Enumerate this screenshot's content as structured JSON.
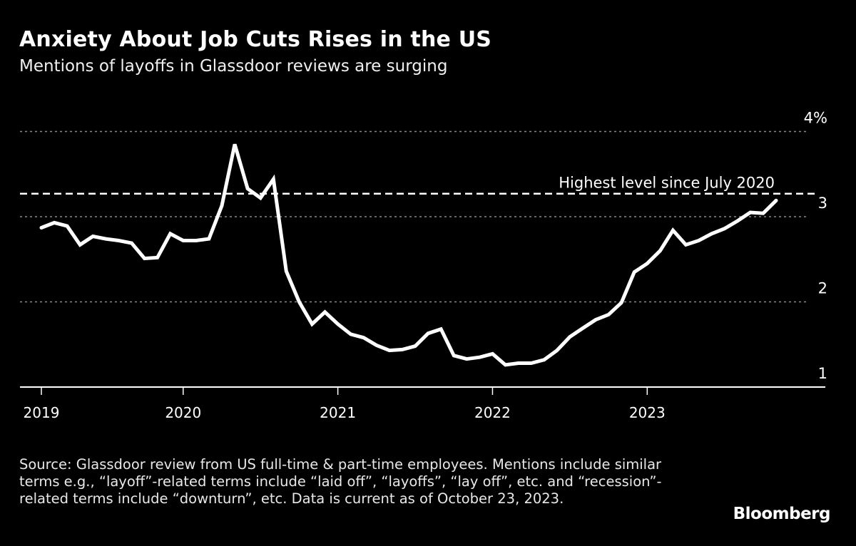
{
  "title": "Anxiety About Job Cuts Rises in the US",
  "subtitle": "Mentions of layoffs in Glassdoor reviews are surging",
  "source": "Source: Glassdoor review from US full-time & part-time employees. Mentions include similar terms e.g., “layoff”-related terms include “laid off”, “layoffs”, “lay off”, etc. and “recession”-related terms include “downturn”, etc. Data is current as of October 23, 2023.",
  "logo": "Bloomberg",
  "colors": {
    "background": "#000000",
    "line": "#ffffff",
    "grid": "#8a8a8a"
  },
  "chart_data": {
    "type": "line",
    "title": "Anxiety About Job Cuts Rises in the US",
    "xlabel": "",
    "ylabel": "",
    "x_unit": "month index from Jan 2019",
    "x_start": "2019-01",
    "ylim": [
      1,
      4
    ],
    "yticks": [
      {
        "value": 4,
        "label": "4%"
      },
      {
        "value": 3,
        "label": "3"
      },
      {
        "value": 2,
        "label": "2"
      },
      {
        "value": 1,
        "label": "1"
      }
    ],
    "xticks": [
      {
        "value": 0,
        "label": "2019"
      },
      {
        "value": 11,
        "label": "2020"
      },
      {
        "value": 23,
        "label": "2021"
      },
      {
        "value": 35,
        "label": "2022"
      },
      {
        "value": 47,
        "label": "2023"
      }
    ],
    "grid": true,
    "series": [
      {
        "name": "Mentions of layoffs (%)",
        "values": [
          2.87,
          2.93,
          2.89,
          2.67,
          2.77,
          2.74,
          2.72,
          2.69,
          2.51,
          2.52,
          2.8,
          2.72,
          2.72,
          2.74,
          3.13,
          3.85,
          3.33,
          3.22,
          3.44,
          2.36,
          2.0,
          1.74,
          1.88,
          1.74,
          1.62,
          1.58,
          1.49,
          1.43,
          1.44,
          1.48,
          1.63,
          1.68,
          1.37,
          1.33,
          1.35,
          1.39,
          1.26,
          1.28,
          1.28,
          1.32,
          1.43,
          1.59,
          1.69,
          1.79,
          1.85,
          1.99,
          2.35,
          2.45,
          2.6,
          2.84,
          2.67,
          2.72,
          2.8,
          2.86,
          2.95,
          3.05,
          3.04,
          3.19
        ]
      }
    ],
    "annotations": [
      {
        "text": "Highest level since July 2020",
        "value": 3.27
      }
    ]
  }
}
